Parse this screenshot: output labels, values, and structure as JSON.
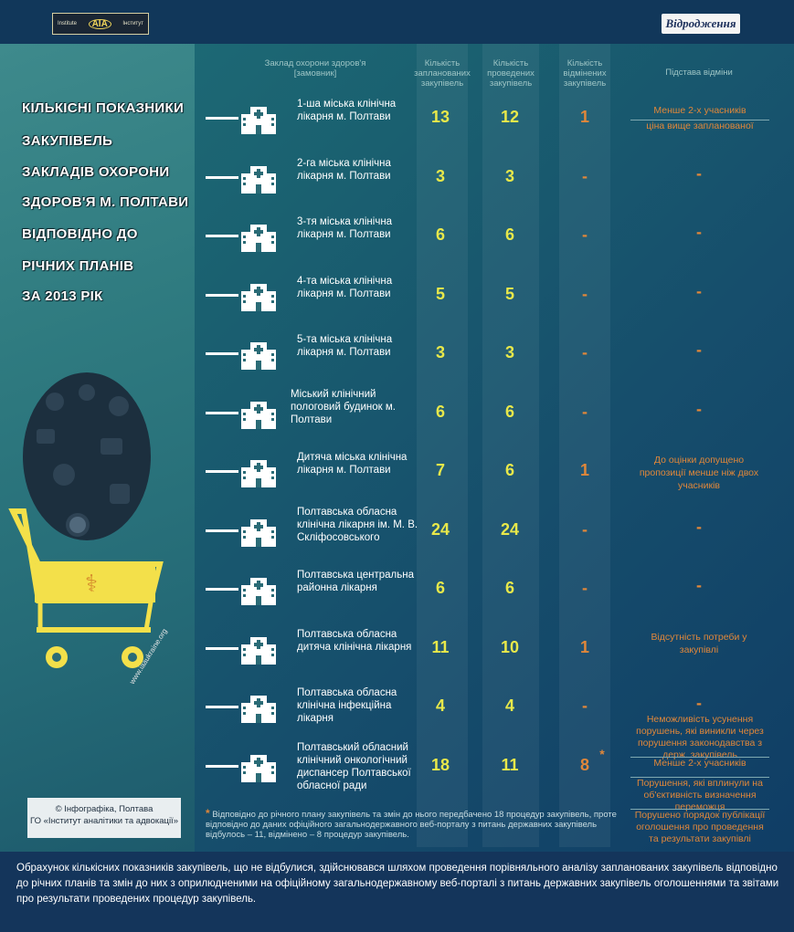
{
  "header": {
    "logo_left": {
      "line1": "Institute",
      "line2": "Інститут",
      "mark": "AIA"
    },
    "logo_right": "Відродження"
  },
  "title_lines": [
    "КІЛЬКІСНІ ПОКАЗНИКИ",
    "ЗАКУПІВЕЛЬ",
    "ЗАКЛАДІВ ОХОРОНИ",
    "ЗДОРОВ'Я М. ПОЛТАВИ",
    "ВІДПОВІДНО ДО",
    "РІЧНИХ ПЛАНІВ",
    "ЗА 2013 РІК"
  ],
  "columns": {
    "institution": "Заклад охорони здоров'я [замовник]",
    "planned": "Кількість запланованих закупівель",
    "held": "Кількість проведених закупівель",
    "cancelled": "Кількість відмінених закупівель",
    "reason": "Підстава відміни"
  },
  "rows": [
    {
      "name": "1-ша міська клінічна лікарня м. Полтави",
      "planned": "13",
      "held": "12",
      "cancelled": "1",
      "reason": ""
    },
    {
      "name": "2-га міська клінічна лікарня м. Полтави",
      "planned": "3",
      "held": "3",
      "cancelled": "-",
      "reason": "-"
    },
    {
      "name": "3-тя міська клінічна лікарня м. Полтави",
      "planned": "6",
      "held": "6",
      "cancelled": "-",
      "reason": "-"
    },
    {
      "name": "4-та міська клінічна лікарня м. Полтави",
      "planned": "5",
      "held": "5",
      "cancelled": "-",
      "reason": "-"
    },
    {
      "name": "5-та міська клінічна лікарня м. Полтави",
      "planned": "3",
      "held": "3",
      "cancelled": "-",
      "reason": "-"
    },
    {
      "name": "Міський клінічний пологовий будинок м. Полтави",
      "planned": "6",
      "held": "6",
      "cancelled": "-",
      "reason": "-"
    },
    {
      "name": "Дитяча міська клінічна лікарня м. Полтави",
      "planned": "7",
      "held": "6",
      "cancelled": "1",
      "reason": "До оцінки допущено пропозиції менше ніж двох учасників"
    },
    {
      "name": "Полтавська обласна клінічна лікарня ім. М. В. Скліфосовського",
      "planned": "24",
      "held": "24",
      "cancelled": "-",
      "reason": "-"
    },
    {
      "name": "Полтавська центральна районна лікарня",
      "planned": "6",
      "held": "6",
      "cancelled": "-",
      "reason": "-"
    },
    {
      "name": "Полтавська обласна дитяча клінічна лікарня",
      "planned": "11",
      "held": "10",
      "cancelled": "1",
      "reason": "Відсутність потреби у закупівлі"
    },
    {
      "name": "Полтавська обласна клінічна інфекційна лікарня",
      "planned": "4",
      "held": "4",
      "cancelled": "-",
      "reason": "-"
    },
    {
      "name": "Полтавський обласний клінічний онкологічний диспансер Полтавської обласної ради",
      "planned": "18",
      "held": "11",
      "cancelled": "8",
      "reason": ""
    }
  ],
  "reason_row1": [
    "Менше 2-х учасників",
    "ціна вище запланованої"
  ],
  "reason_row12": [
    "Неможливість усунення порушень, які виникли через порушення законодавства з держ. закупівель",
    "Менше 2-х учасників",
    "Порушення, які вплинули на об'єктивність визначення переможця",
    "Порушено порядок публікації оголошення про проведення та результати закупівлі"
  ],
  "asterisk": "*",
  "footnote": "Відповідно до річного плану закупівель та змін до нього передбачено 18 процедур закупівель, проте відповідно до даних офіційного загальнодержавного веб-порталу з питань державних закупівель відбулось – 11, відмінено – 8 процедур закупівель.",
  "copyright": {
    "line1": "© Інфографіка, Полтава",
    "line2": "ГО «Інститут аналітики та адвокації»"
  },
  "cart_url": "www.iaaukraine.org",
  "bottom_note": "Обрахунок кількісних показників закупівель, що не відбулися, здійснювався шляхом проведення порівняльного аналізу запланованих закупівель відповідно до річних планів та змін до них з оприлюдненими на офіційному загальнодержавному веб-порталі з питань державних закупівель оголошеннями та звітами про результати проведених процедур закупівель.",
  "colors": {
    "number": "#e8e84a",
    "cancel": "#e0873a",
    "bottom": "#14355b"
  }
}
